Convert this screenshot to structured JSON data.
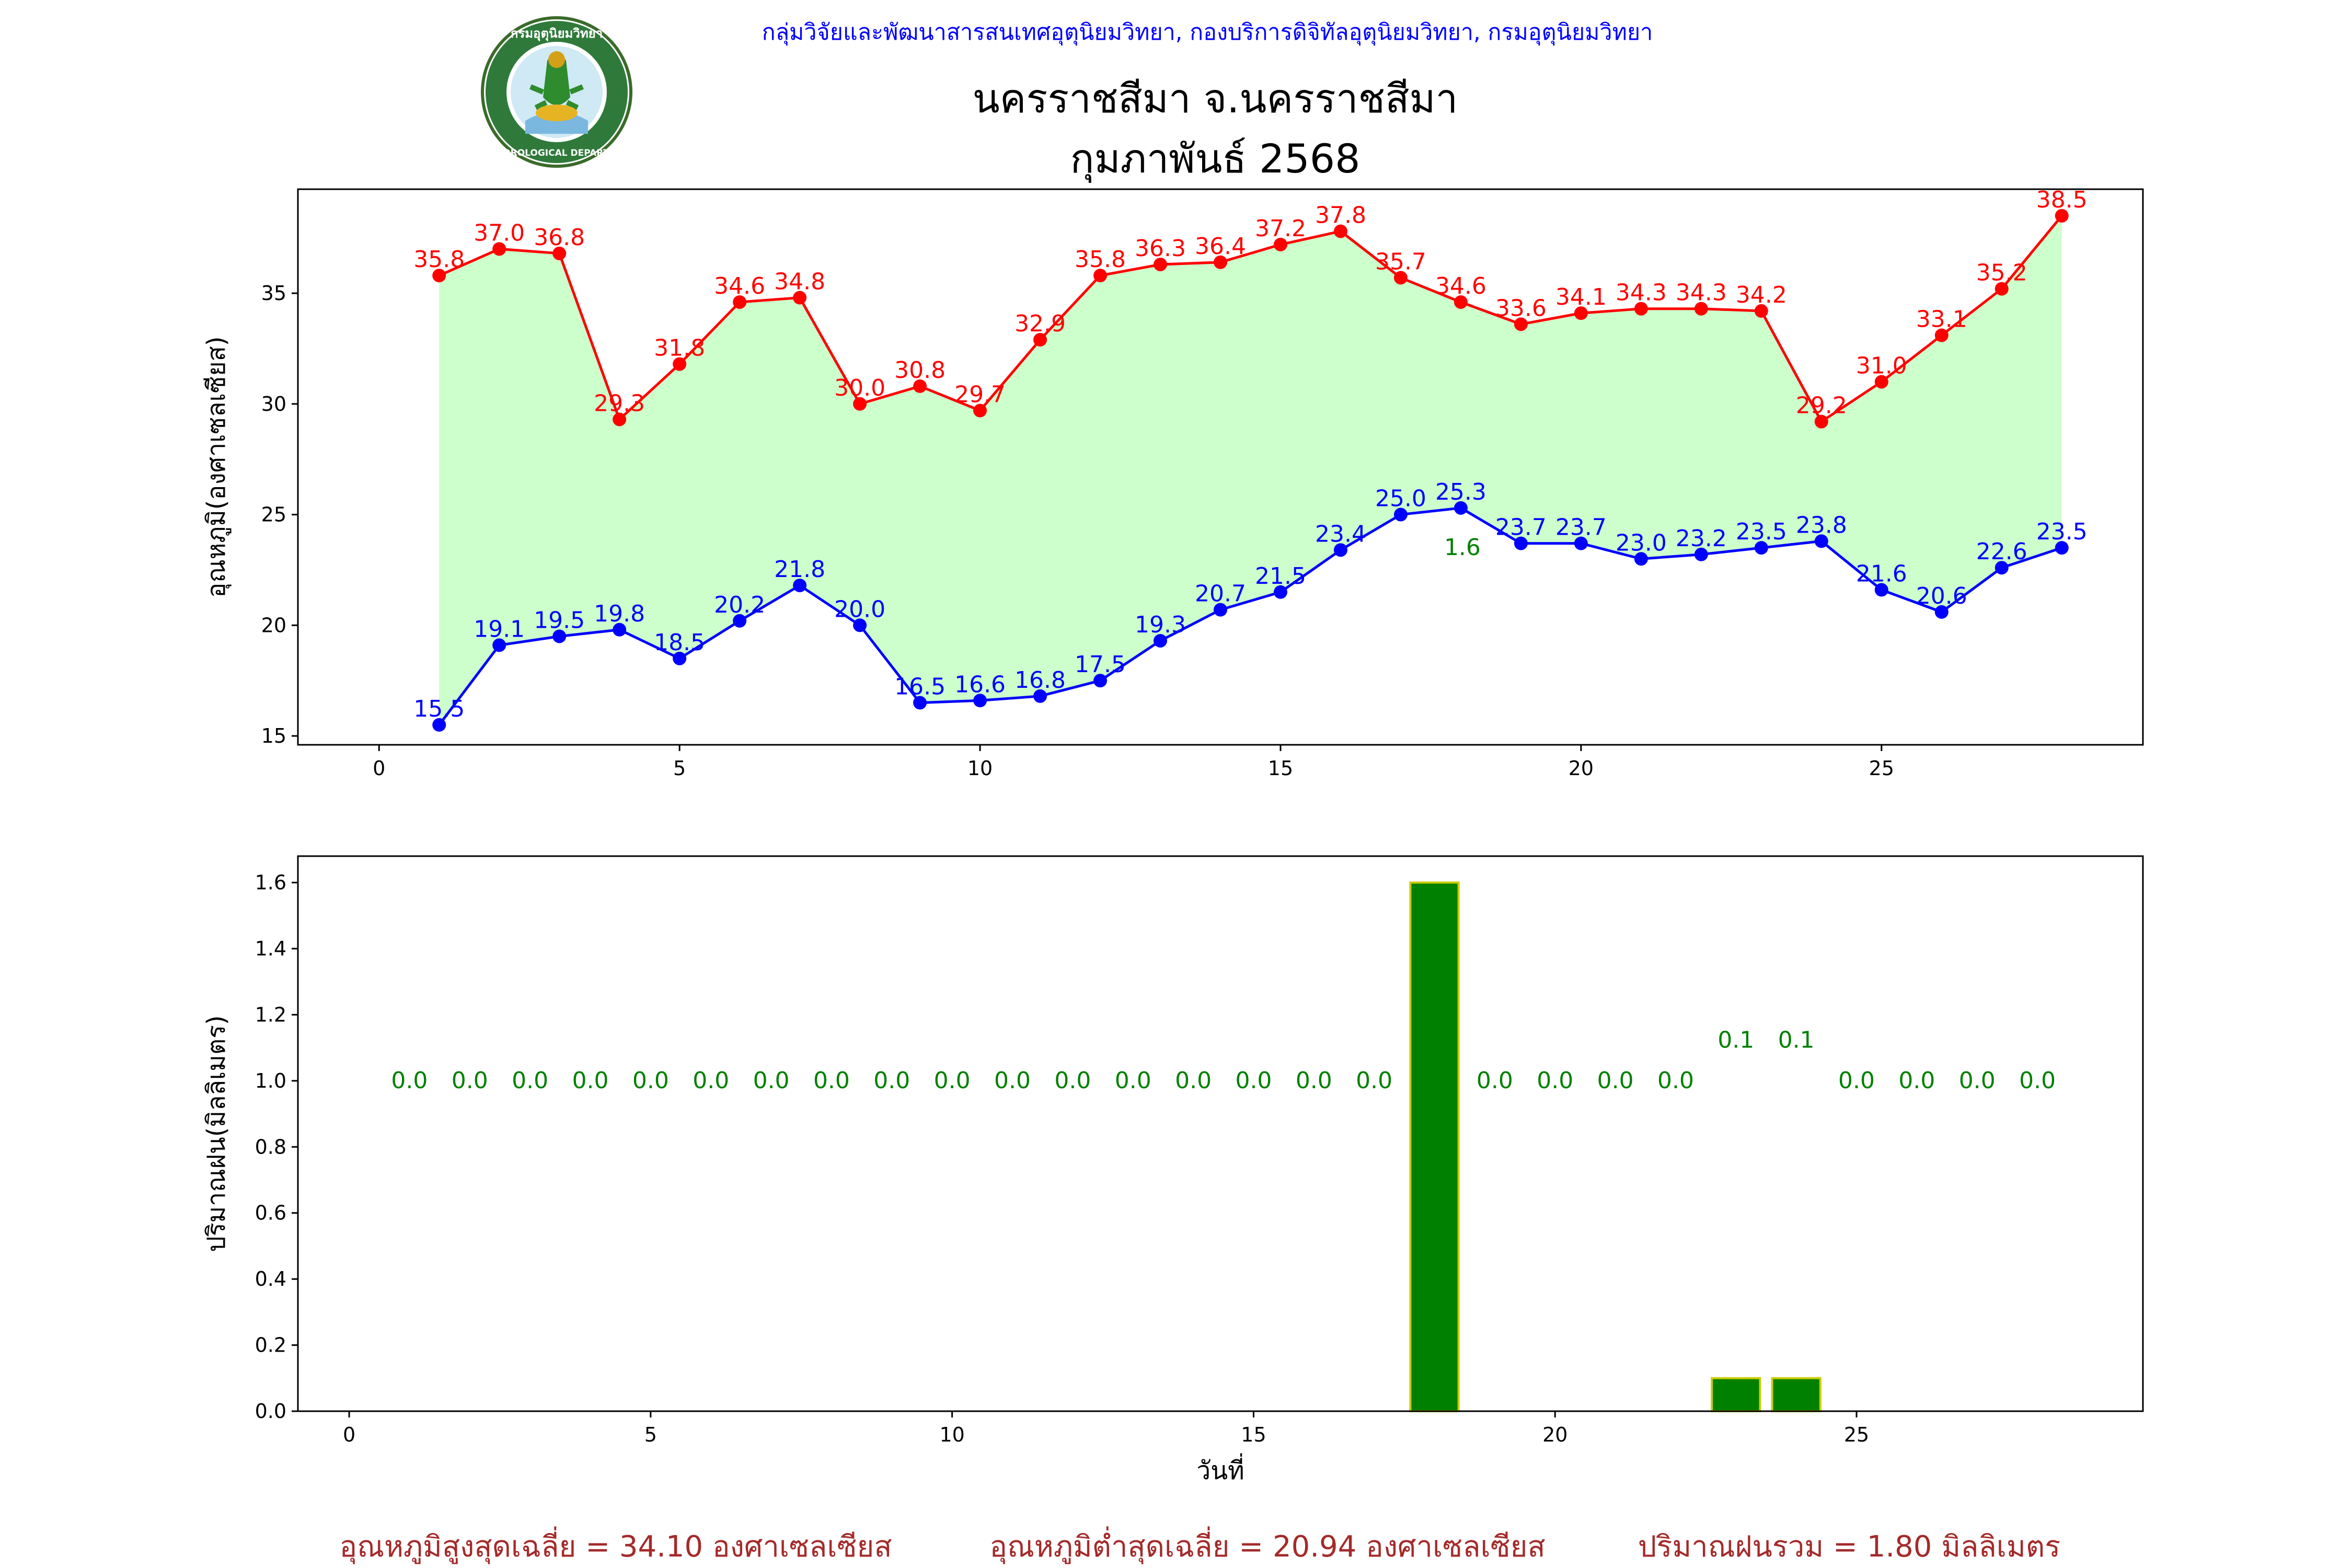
{
  "header": {
    "agency": "กลุ่มวิจัยและพัฒนาสารสนเทศอุตุนิยมวิทยา, กองบริการดิจิทัลอุตุนิยมวิทยา, กรมอุตุนิยมวิทยา",
    "station": "นครราชสีมา จ.นครราชสีมา",
    "month": "กุมภาพันธ์ 2568",
    "logo_top": "กรมอุตุนิยมวิทยา",
    "logo_bottom": "METEOROLOGICAL DEPARTMENT"
  },
  "colors": {
    "max": "#ff0000",
    "min": "#0000ff",
    "fill": "#ccffcc",
    "rain_bar": "#008000",
    "rain_edge": "#cccc00",
    "rain_label": "#008000",
    "header_blue": "#0000ff",
    "footer": "#a52a2a"
  },
  "chart_data": [
    {
      "type": "line",
      "title": "",
      "xlabel": "",
      "ylabel": "อุณหภูมิ(องศาเซลเซียส)",
      "xlim": [
        -1.35,
        29.35
      ],
      "ylim": [
        14.6,
        39.7
      ],
      "xticks": [
        0,
        5,
        10,
        15,
        20,
        25
      ],
      "yticks": [
        15,
        20,
        25,
        30,
        35
      ],
      "x": [
        1,
        2,
        3,
        4,
        5,
        6,
        7,
        8,
        9,
        10,
        11,
        12,
        13,
        14,
        15,
        16,
        17,
        18,
        19,
        20,
        21,
        22,
        23,
        24,
        25,
        26,
        27,
        28
      ],
      "series": [
        {
          "key": "max",
          "values": [
            35.8,
            37.0,
            36.8,
            29.3,
            31.8,
            34.6,
            34.8,
            30.0,
            30.8,
            29.7,
            32.9,
            35.8,
            36.3,
            36.4,
            37.2,
            37.8,
            35.7,
            34.6,
            33.6,
            34.1,
            34.3,
            34.3,
            34.2,
            29.2,
            31.0,
            33.1,
            35.2,
            38.5
          ]
        },
        {
          "key": "min",
          "values": [
            15.5,
            19.1,
            19.5,
            19.8,
            18.5,
            20.2,
            21.8,
            20.0,
            16.5,
            16.6,
            16.8,
            17.5,
            19.3,
            20.7,
            21.5,
            23.4,
            25.0,
            25.3,
            23.7,
            23.7,
            23.0,
            23.2,
            23.5,
            23.8,
            21.6,
            20.6,
            22.6,
            23.5
          ]
        }
      ],
      "annotations": [
        {
          "day": 18,
          "text": "1.6"
        }
      ]
    },
    {
      "type": "bar",
      "title": "",
      "xlabel": "วันที่",
      "ylabel": "ปริมาณฝน(มิลลิเมตร)",
      "xlim": [
        -0.85,
        29.75
      ],
      "ylim": [
        0,
        1.68
      ],
      "xticks": [
        0,
        5,
        10,
        15,
        20,
        25
      ],
      "yticks": [
        "0.0",
        "0.2",
        "0.4",
        "0.6",
        "0.8",
        "1.0",
        "1.2",
        "1.4",
        "1.6"
      ],
      "categories": [
        1,
        2,
        3,
        4,
        5,
        6,
        7,
        8,
        9,
        10,
        11,
        12,
        13,
        14,
        15,
        16,
        17,
        18,
        19,
        20,
        21,
        22,
        23,
        24,
        25,
        26,
        27,
        28
      ],
      "values": [
        0,
        0,
        0,
        0,
        0,
        0,
        0,
        0,
        0,
        0,
        0,
        0,
        0,
        0,
        0,
        0,
        0,
        1.6,
        0,
        0,
        0,
        0,
        0.1,
        0.1,
        0,
        0,
        0,
        0
      ],
      "labels": [
        "0.0",
        "0.0",
        "0.0",
        "0.0",
        "0.0",
        "0.0",
        "0.0",
        "0.0",
        "0.0",
        "0.0",
        "0.0",
        "0.0",
        "0.0",
        "0.0",
        "0.0",
        "0.0",
        "0.0",
        "",
        "0.0",
        "0.0",
        "0.0",
        "0.0",
        "0.1",
        "0.1",
        "0.0",
        "0.0",
        "0.0",
        "0.0"
      ]
    }
  ],
  "footer": {
    "avg_max": "อุณหภูมิสูงสุดเฉลี่ย = 34.10 องศาเซลเซียส",
    "avg_min": "อุณหภูมิต่ำสุดเฉลี่ย = 20.94 องศาเซลเซียส",
    "rain_total": "ปริมาณฝนรวม = 1.80 มิลลิเมตร"
  }
}
